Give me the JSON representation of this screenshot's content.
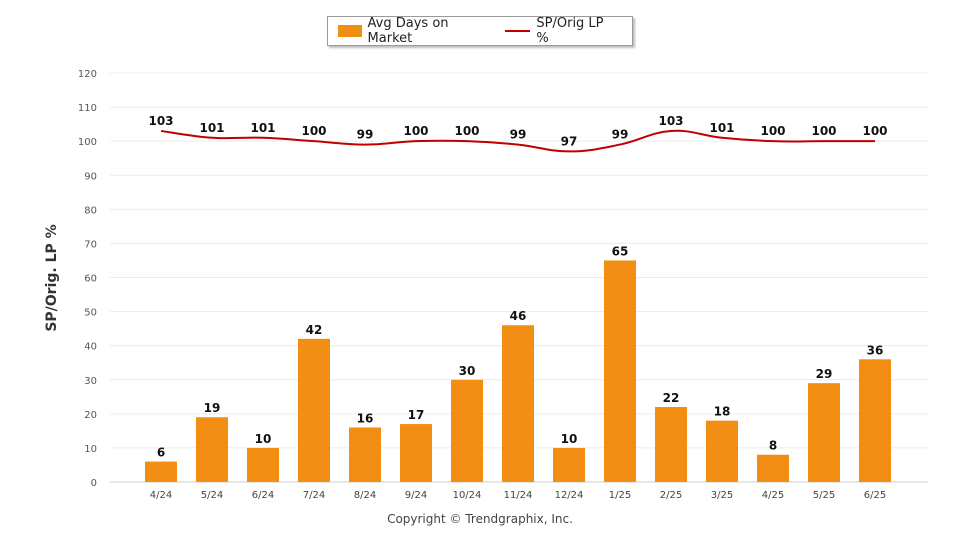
{
  "chart_data": {
    "type": "bar",
    "title": "",
    "xlabel": "",
    "ylabel": "SP/Orig. LP %",
    "ylim": [
      0,
      120
    ],
    "yticks": [
      0,
      10,
      20,
      30,
      40,
      50,
      60,
      70,
      80,
      90,
      100,
      110,
      120
    ],
    "grid": true,
    "legend_position": "top-center",
    "categories": [
      "4/24",
      "5/24",
      "6/24",
      "7/24",
      "8/24",
      "9/24",
      "10/24",
      "11/24",
      "12/24",
      "1/25",
      "2/25",
      "3/25",
      "4/25",
      "5/25",
      "6/25"
    ],
    "series": [
      {
        "name": "Avg Days on Market",
        "type": "bar",
        "color": "#f28e13",
        "values": [
          6,
          19,
          10,
          42,
          16,
          17,
          30,
          46,
          10,
          65,
          22,
          18,
          8,
          29,
          36
        ]
      },
      {
        "name": "SP/Orig LP %",
        "type": "line",
        "color": "#c00000",
        "values": [
          103,
          101,
          101,
          100,
          99,
          100,
          100,
          99,
          97,
          99,
          103,
          101,
          100,
          100,
          100
        ]
      }
    ]
  },
  "footer": "Copyright © Trendgraphix, Inc."
}
